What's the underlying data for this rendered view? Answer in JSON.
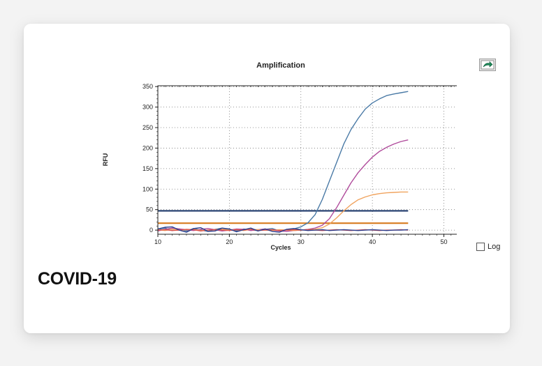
{
  "card": {
    "title": "COVID-19",
    "log_label": "Log",
    "log_checked": false
  },
  "chart_data": {
    "type": "line",
    "title": "Amplification",
    "xlabel": "Cycles",
    "ylabel": "RFU",
    "xlim": [
      10,
      52
    ],
    "ylim": [
      -10,
      352
    ],
    "xticks": [
      10,
      20,
      30,
      40,
      50
    ],
    "yticks": [
      0,
      50,
      100,
      150,
      200,
      250,
      300,
      350
    ],
    "grid": true,
    "log_scale": false,
    "thresholds": [
      {
        "value": 47,
        "color": "#1f3a6b"
      },
      {
        "value": 17,
        "color": "#d9822b"
      }
    ],
    "series": [
      {
        "color": "#4a7aa6",
        "x": [
          10,
          11,
          12,
          13,
          14,
          15,
          16,
          17,
          18,
          19,
          20,
          21,
          22,
          23,
          24,
          25,
          26,
          27,
          28,
          29,
          30,
          31,
          32,
          33,
          34,
          35,
          36,
          37,
          38,
          39,
          40,
          41,
          42,
          43,
          44,
          45
        ],
        "y": [
          2,
          5,
          -1,
          3,
          -2,
          4,
          0,
          -3,
          2,
          5,
          1,
          -2,
          3,
          0,
          -1,
          2,
          4,
          -2,
          1,
          3,
          8,
          18,
          38,
          75,
          120,
          165,
          210,
          245,
          272,
          295,
          310,
          320,
          328,
          332,
          335,
          338
        ]
      },
      {
        "color": "#b04c9c",
        "x": [
          10,
          11,
          12,
          13,
          14,
          15,
          16,
          17,
          18,
          19,
          20,
          21,
          22,
          23,
          24,
          25,
          26,
          27,
          28,
          29,
          30,
          31,
          32,
          33,
          34,
          35,
          36,
          37,
          38,
          39,
          40,
          41,
          42,
          43,
          44,
          45
        ],
        "y": [
          -2,
          2,
          5,
          3,
          1,
          -1,
          2,
          4,
          1,
          -2,
          0,
          3,
          2,
          -1,
          1,
          3,
          0,
          -2,
          -3,
          -1,
          0,
          2,
          5,
          12,
          28,
          55,
          85,
          115,
          140,
          160,
          178,
          192,
          202,
          210,
          216,
          220
        ]
      },
      {
        "color": "#f0a35e",
        "x": [
          10,
          11,
          12,
          13,
          14,
          15,
          16,
          17,
          18,
          19,
          20,
          21,
          22,
          23,
          24,
          25,
          26,
          27,
          28,
          29,
          30,
          31,
          32,
          33,
          34,
          35,
          36,
          37,
          38,
          39,
          40,
          41,
          42,
          43,
          44,
          45
        ],
        "y": [
          1,
          -1,
          2,
          0,
          1,
          2,
          -1,
          0,
          1,
          2,
          0,
          1,
          -1,
          2,
          1,
          0,
          -1,
          1,
          0,
          -1,
          0,
          1,
          2,
          6,
          15,
          30,
          47,
          62,
          74,
          81,
          86,
          89,
          91,
          92,
          93,
          93
        ]
      },
      {
        "color": "#d9534f",
        "x": [
          10,
          11,
          12,
          13,
          14,
          15,
          16,
          17,
          18,
          19,
          20,
          21,
          22,
          23,
          24,
          25,
          26,
          27,
          28,
          29,
          30,
          31,
          32,
          33,
          34,
          35,
          36,
          37,
          38,
          39,
          40,
          41,
          42,
          43,
          44,
          45
        ],
        "y": [
          0,
          1,
          -1,
          0,
          2,
          1,
          -2,
          0,
          1,
          0,
          -1,
          1,
          0,
          2,
          -1,
          0,
          1,
          -1,
          0,
          1,
          0,
          1,
          0,
          -1,
          0,
          1,
          0,
          -1,
          0,
          1,
          0,
          -1,
          0,
          0,
          1,
          0
        ]
      },
      {
        "color": "#2a3f8f",
        "x": [
          10,
          11,
          12,
          13,
          14,
          15,
          16,
          17,
          18,
          19,
          20,
          21,
          22,
          23,
          24,
          25,
          26,
          27,
          28,
          29,
          30,
          31,
          32,
          33,
          34,
          35,
          36,
          37,
          38,
          39,
          40,
          41,
          42,
          43,
          44,
          45
        ],
        "y": [
          3,
          7,
          8,
          0,
          -5,
          4,
          6,
          -3,
          -2,
          5,
          3,
          -4,
          1,
          5,
          -2,
          3,
          -3,
          -5,
          2,
          4,
          1,
          -1,
          0,
          1,
          -1,
          0,
          1,
          0,
          -1,
          0,
          1,
          0,
          -1,
          0,
          0,
          1
        ]
      }
    ]
  }
}
